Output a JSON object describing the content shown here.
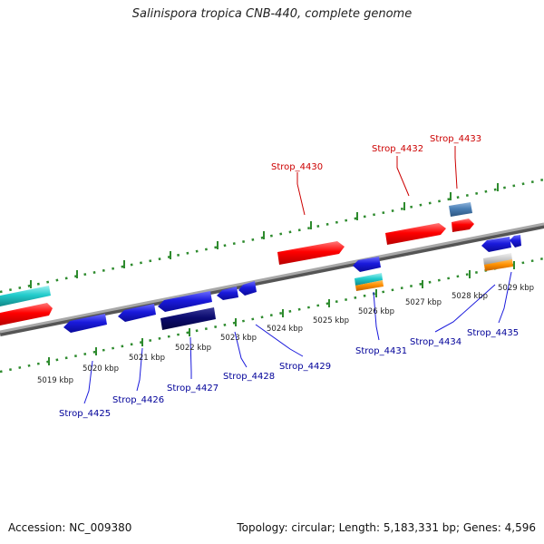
{
  "title": "Salinispora tropica CNB-440, complete genome",
  "footer": {
    "accession": "Accession: NC_009380",
    "stats": "Topology: circular; Length: 5,183,331 bp; Genes: 4,596"
  },
  "colors": {
    "backbone": "#8c8c8c",
    "ruler": "#2e8b2e",
    "forward_gene": "#ff0000",
    "reverse_gene": "#1a1adc",
    "dark_gene": "#0b0b6e",
    "cyan_gene": "#22cccc",
    "steel_gene": "#4a7fb5",
    "orange_gene": "#ff9000",
    "silver_gene": "#c8c8c8",
    "forward_label": "#cc0000",
    "reverse_label": "#000099"
  },
  "tick_labels": [
    "5019 kbp",
    "5020 kbp",
    "5021 kbp",
    "5022 kbp",
    "5023 kbp",
    "5024 kbp",
    "5025 kbp",
    "5026 kbp",
    "5027 kbp",
    "5028 kbp",
    "5029 kbp"
  ],
  "forward_labels": [
    "Strop_4430",
    "Strop_4432",
    "Strop_4433"
  ],
  "reverse_labels": [
    "Strop_4425",
    "Strop_4426",
    "Strop_4427",
    "Strop_4428",
    "Strop_4429",
    "Strop_4431",
    "Strop_4434",
    "Strop_4435"
  ]
}
